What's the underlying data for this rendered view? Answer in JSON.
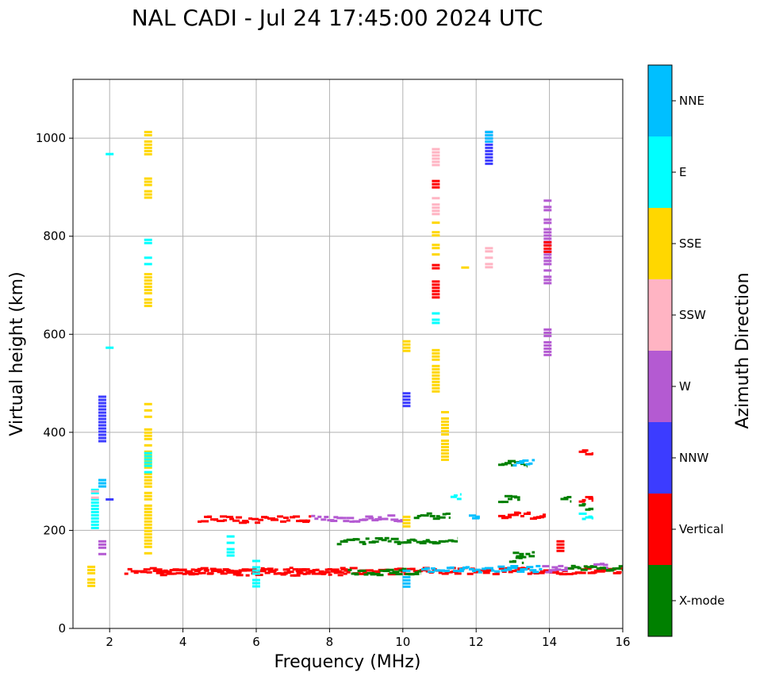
{
  "chart_data": {
    "type": "scatter",
    "title": "NAL CADI - Jul 24 17:45:00 2024 UTC",
    "xlabel": "Frequency (MHz)",
    "ylabel": "Virtual height (km)",
    "xlim": [
      1,
      16
    ],
    "ylim": [
      0,
      1120
    ],
    "xticks": [
      2,
      4,
      6,
      8,
      10,
      12,
      14,
      16
    ],
    "yticks": [
      0,
      200,
      400,
      600,
      800,
      1000
    ],
    "grid": true,
    "colorbar": {
      "label": "Azimuth Direction",
      "categories": [
        {
          "name": "X-mode",
          "color": "#008000"
        },
        {
          "name": "Vertical",
          "color": "#ff0000"
        },
        {
          "name": "NNW",
          "color": "#3c3cff"
        },
        {
          "name": "W",
          "color": "#b45ad2"
        },
        {
          "name": "SSW",
          "color": "#ffb4c3"
        },
        {
          "name": "SSE",
          "color": "#ffd700"
        },
        {
          "name": "E",
          "color": "#00ffff"
        },
        {
          "name": "NNE",
          "color": "#00bfff"
        }
      ]
    },
    "echoes": [
      {
        "x": 1.5,
        "y1": 88,
        "y2": 128,
        "cat": "SSE"
      },
      {
        "x": 1.6,
        "y1": 200,
        "y2": 285,
        "cat": "E"
      },
      {
        "x": 1.6,
        "y1": 268,
        "y2": 282,
        "cat": "SSW"
      },
      {
        "x": 1.8,
        "y1": 150,
        "y2": 180,
        "cat": "W"
      },
      {
        "x": 1.8,
        "y1": 375,
        "y2": 475,
        "cat": "NNW"
      },
      {
        "x": 1.8,
        "y1": 290,
        "y2": 305,
        "cat": "NNE"
      },
      {
        "x": 2.0,
        "y1": 262,
        "y2": 272,
        "cat": "NNW"
      },
      {
        "x": 2.0,
        "y1": 965,
        "y2": 970,
        "cat": "E"
      },
      {
        "x": 2.0,
        "y1": 570,
        "y2": 575,
        "cat": "E"
      },
      {
        "x": 3.05,
        "y1": 150,
        "y2": 460,
        "cat": "SSE"
      },
      {
        "x": 3.05,
        "y1": 320,
        "y2": 360,
        "cat": "E"
      },
      {
        "x": 3.05,
        "y1": 655,
        "y2": 725,
        "cat": "SSE"
      },
      {
        "x": 3.05,
        "y1": 745,
        "y2": 765,
        "cat": "E"
      },
      {
        "x": 3.05,
        "y1": 785,
        "y2": 795,
        "cat": "E"
      },
      {
        "x": 3.05,
        "y1": 875,
        "y2": 920,
        "cat": "SSE"
      },
      {
        "x": 3.05,
        "y1": 965,
        "y2": 1015,
        "cat": "SSE"
      },
      {
        "x": 10.1,
        "y1": 85,
        "y2": 120,
        "cat": "NNE"
      },
      {
        "x": 10.1,
        "y1": 205,
        "y2": 230,
        "cat": "SSE"
      },
      {
        "x": 10.1,
        "y1": 450,
        "y2": 482,
        "cat": "NNW"
      },
      {
        "x": 10.1,
        "y1": 565,
        "y2": 588,
        "cat": "SSE"
      },
      {
        "x": 10.9,
        "y1": 485,
        "y2": 570,
        "cat": "SSE"
      },
      {
        "x": 10.9,
        "y1": 625,
        "y2": 645,
        "cat": "E"
      },
      {
        "x": 10.9,
        "y1": 675,
        "y2": 710,
        "cat": "Vertical"
      },
      {
        "x": 10.9,
        "y1": 735,
        "y2": 750,
        "cat": "Vertical"
      },
      {
        "x": 10.9,
        "y1": 760,
        "y2": 830,
        "cat": "SSE"
      },
      {
        "x": 10.9,
        "y1": 845,
        "y2": 880,
        "cat": "SSW"
      },
      {
        "x": 10.9,
        "y1": 895,
        "y2": 915,
        "cat": "Vertical"
      },
      {
        "x": 10.9,
        "y1": 945,
        "y2": 980,
        "cat": "SSW"
      },
      {
        "x": 11.15,
        "y1": 345,
        "y2": 450,
        "cat": "SSE"
      },
      {
        "x": 11.7,
        "y1": 735,
        "y2": 745,
        "cat": "SSE"
      },
      {
        "x": 12.35,
        "y1": 950,
        "y2": 1015,
        "cat": "NNW"
      },
      {
        "x": 12.35,
        "y1": 995,
        "y2": 1015,
        "cat": "NNE"
      },
      {
        "x": 12.35,
        "y1": 735,
        "y2": 778,
        "cat": "SSW"
      },
      {
        "x": 13.95,
        "y1": 700,
        "y2": 875,
        "cat": "W"
      },
      {
        "x": 13.95,
        "y1": 770,
        "y2": 790,
        "cat": "Vertical"
      },
      {
        "x": 13.95,
        "y1": 555,
        "y2": 612,
        "cat": "W"
      },
      {
        "x": 6.0,
        "y1": 88,
        "y2": 140,
        "cat": "E"
      },
      {
        "x": 5.3,
        "y1": 140,
        "y2": 190,
        "cat": "E"
      },
      {
        "x": 14.3,
        "y1": 155,
        "y2": 180,
        "cat": "Vertical"
      }
    ],
    "traces": [
      {
        "x1": 2.4,
        "x2": 16.0,
        "y": 117,
        "cat": "Vertical"
      },
      {
        "x1": 3.2,
        "x2": 8.5,
        "y": 114,
        "cat": "Vertical"
      },
      {
        "x1": 8.5,
        "x2": 10.5,
        "y": 115,
        "cat": "X-mode"
      },
      {
        "x1": 10.5,
        "x2": 12.5,
        "y": 119,
        "cat": "NNE"
      },
      {
        "x1": 12.5,
        "x2": 13.8,
        "y": 121,
        "cat": "NNE"
      },
      {
        "x1": 13.8,
        "x2": 14.5,
        "y": 121,
        "cat": "W"
      },
      {
        "x1": 14.5,
        "x2": 16.0,
        "y": 124,
        "cat": "X-mode"
      },
      {
        "x1": 15.2,
        "x2": 15.6,
        "y": 127,
        "cat": "W"
      },
      {
        "x1": 4.4,
        "x2": 7.5,
        "y": 222,
        "cat": "Vertical"
      },
      {
        "x1": 7.5,
        "x2": 10.0,
        "y": 224,
        "cat": "W"
      },
      {
        "x1": 10.3,
        "x2": 11.3,
        "y": 228,
        "cat": "X-mode"
      },
      {
        "x1": 8.2,
        "x2": 11.5,
        "y": 178,
        "cat": "X-mode"
      },
      {
        "x1": 12.6,
        "x2": 13.9,
        "y": 230,
        "cat": "Vertical"
      },
      {
        "x1": 12.6,
        "x2": 13.4,
        "y": 335,
        "cat": "X-mode"
      },
      {
        "x1": 13.0,
        "x2": 13.6,
        "y": 337,
        "cat": "NNE"
      },
      {
        "x1": 14.8,
        "x2": 15.2,
        "y": 357,
        "cat": "Vertical"
      },
      {
        "x1": 12.6,
        "x2": 13.2,
        "y": 264,
        "cat": "X-mode"
      },
      {
        "x1": 14.3,
        "x2": 14.6,
        "y": 262,
        "cat": "X-mode"
      },
      {
        "x1": 14.8,
        "x2": 15.2,
        "y": 263,
        "cat": "Vertical"
      },
      {
        "x1": 14.8,
        "x2": 15.2,
        "y": 228,
        "cat": "E"
      },
      {
        "x1": 14.8,
        "x2": 15.2,
        "y": 248,
        "cat": "X-mode"
      },
      {
        "x1": 11.8,
        "x2": 12.1,
        "y": 228,
        "cat": "NNE"
      },
      {
        "x1": 13.0,
        "x2": 13.6,
        "y": 150,
        "cat": "X-mode"
      },
      {
        "x1": 12.9,
        "x2": 13.3,
        "y": 140,
        "cat": "X-mode"
      },
      {
        "x1": 11.3,
        "x2": 11.6,
        "y": 270,
        "cat": "E"
      }
    ]
  }
}
